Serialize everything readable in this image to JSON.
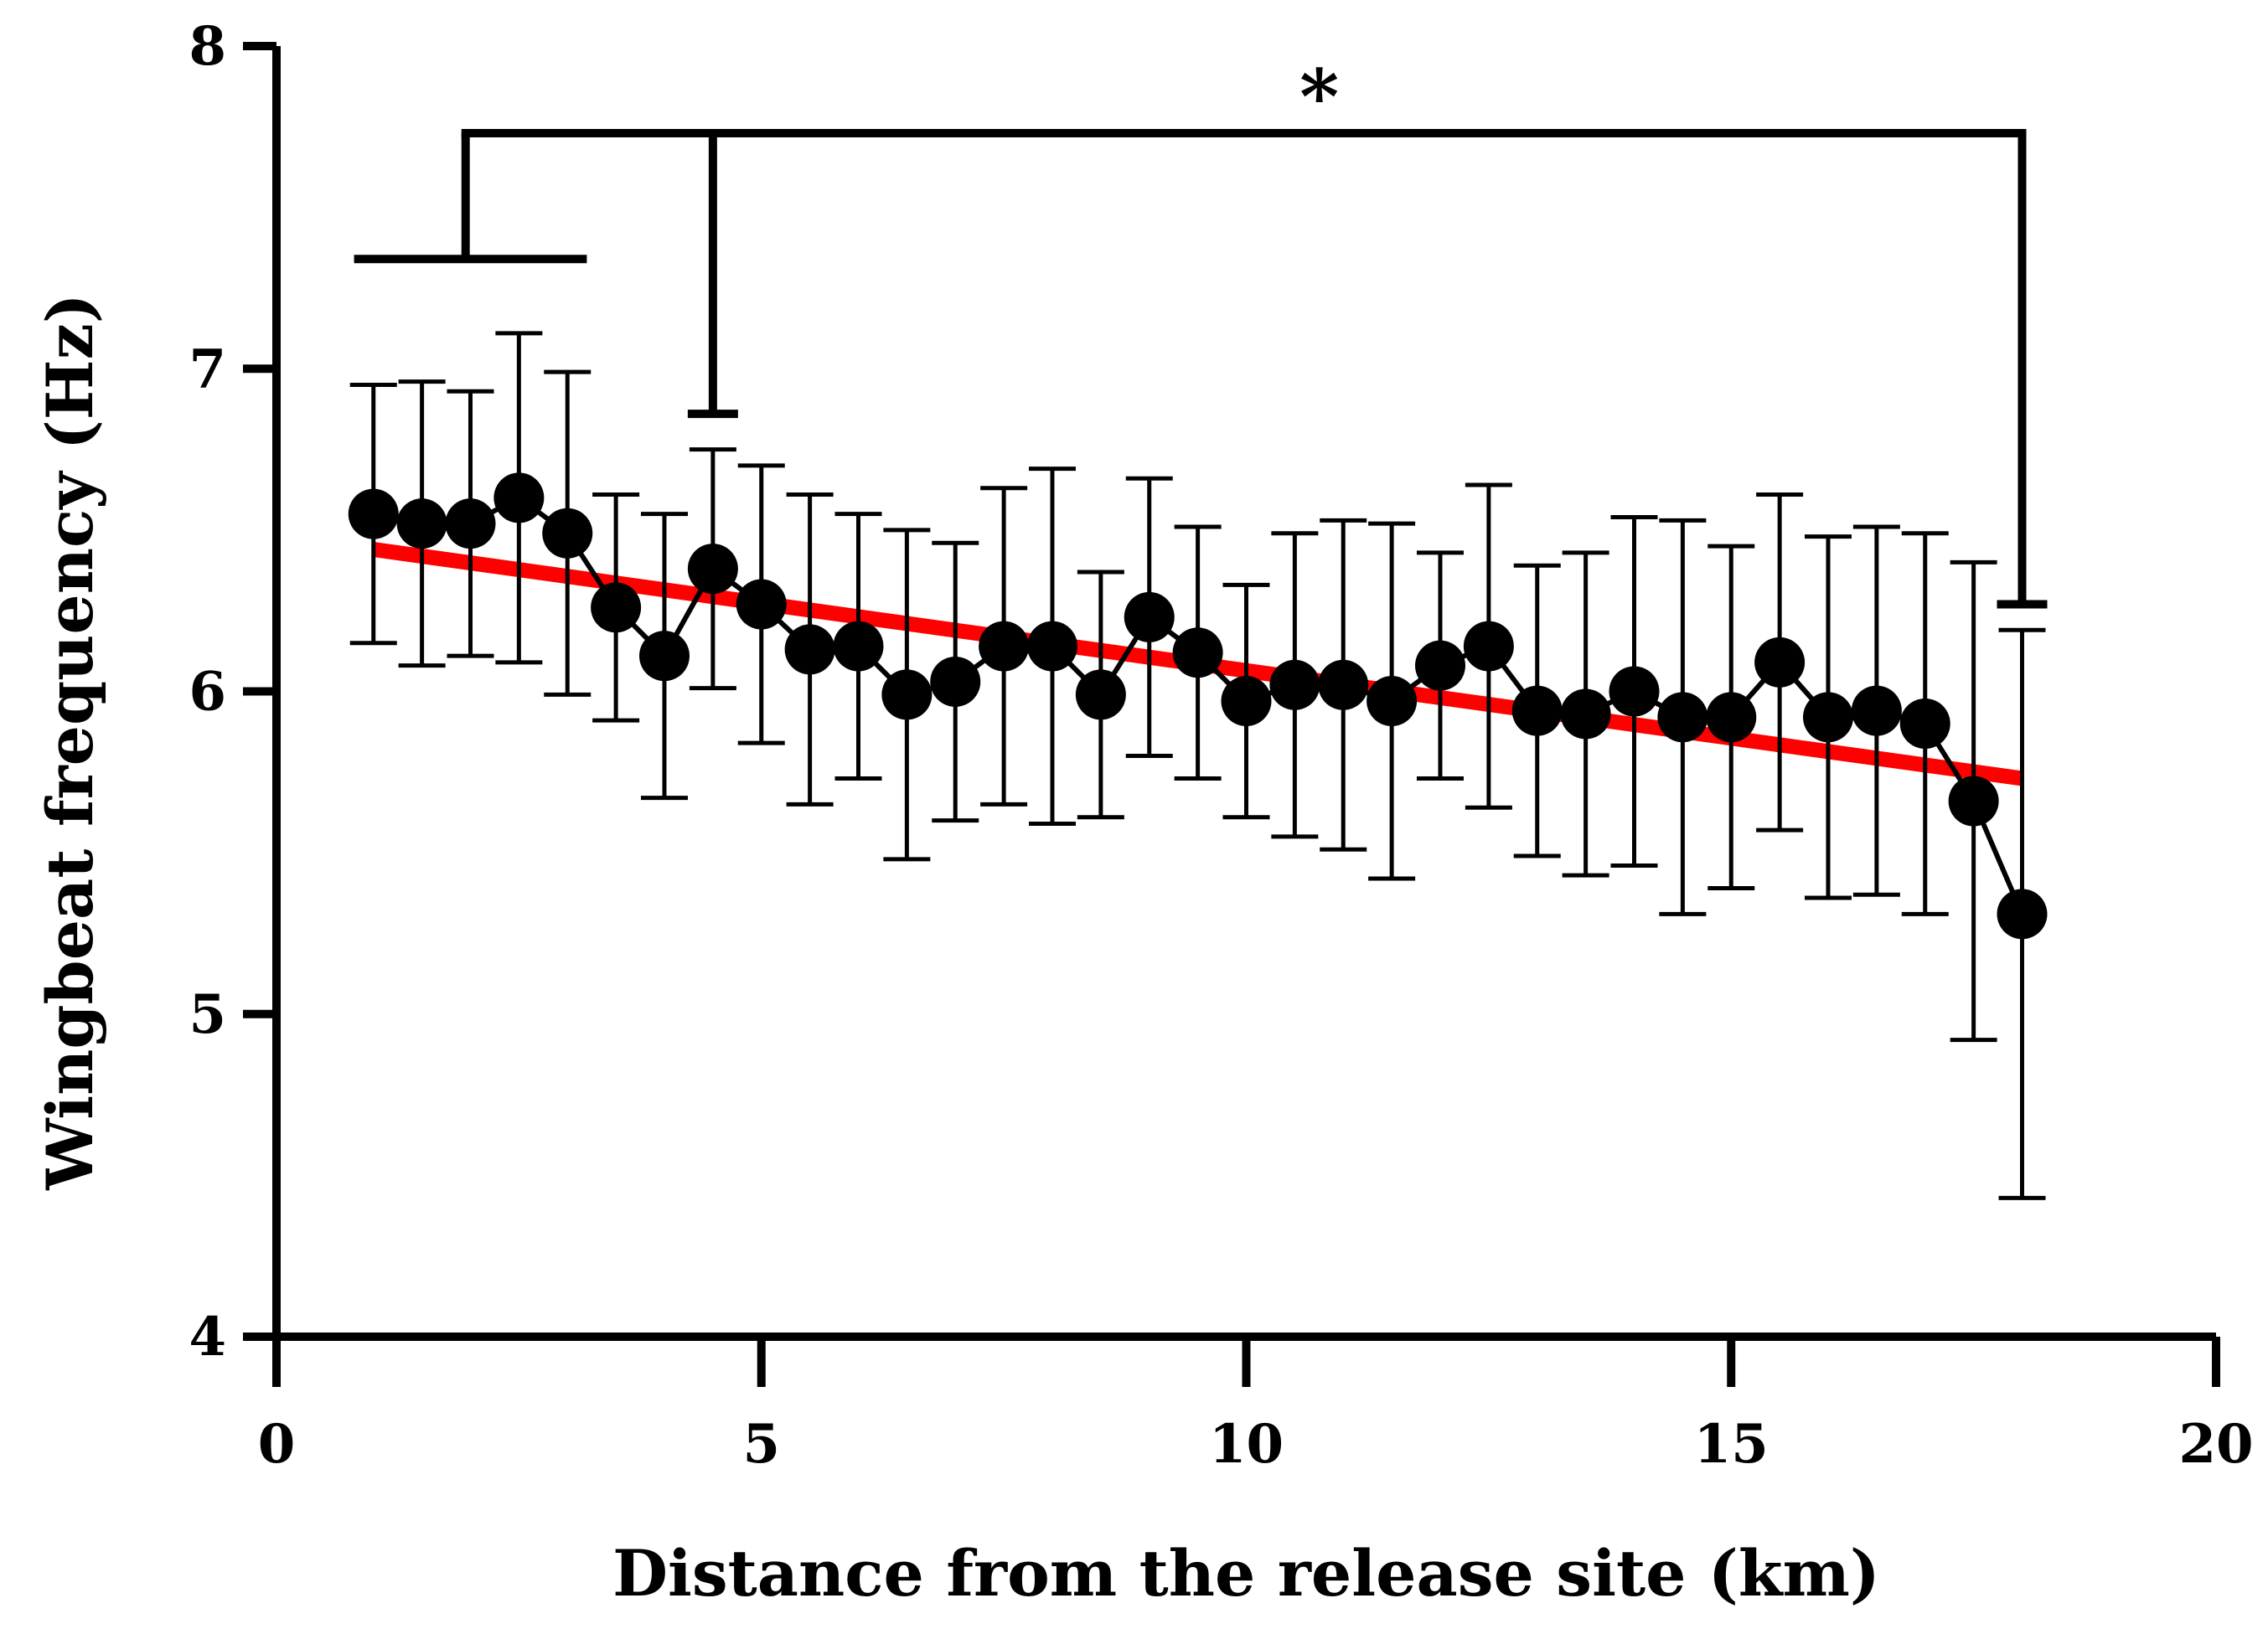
{
  "chart_data": {
    "type": "line",
    "xlabel": "Distance from the release site (km)",
    "ylabel": "Wingbeat frequency (Hz)",
    "xlim": [
      0,
      20
    ],
    "ylim": [
      4,
      8
    ],
    "x_ticks": [
      "0",
      "5",
      "10",
      "15",
      "20"
    ],
    "y_ticks": [
      "4",
      "5",
      "6",
      "7",
      "8"
    ],
    "grid": false,
    "legend": "none",
    "series": [
      {
        "color": "#000000",
        "marker": "circle",
        "error_bars": "symmetric",
        "points": [
          {
            "x": 1.0,
            "y": 6.55,
            "err": 0.4
          },
          {
            "x": 1.5,
            "y": 6.52,
            "err": 0.44
          },
          {
            "x": 2.0,
            "y": 6.52,
            "err": 0.41
          },
          {
            "x": 2.5,
            "y": 6.6,
            "err": 0.51
          },
          {
            "x": 3.0,
            "y": 6.49,
            "err": 0.5
          },
          {
            "x": 3.5,
            "y": 6.26,
            "err": 0.35
          },
          {
            "x": 4.0,
            "y": 6.11,
            "err": 0.44
          },
          {
            "x": 4.5,
            "y": 6.38,
            "err": 0.37
          },
          {
            "x": 5.0,
            "y": 6.27,
            "err": 0.43
          },
          {
            "x": 5.5,
            "y": 6.13,
            "err": 0.48
          },
          {
            "x": 6.0,
            "y": 6.14,
            "err": 0.41
          },
          {
            "x": 6.5,
            "y": 5.99,
            "err": 0.51
          },
          {
            "x": 7.0,
            "y": 6.03,
            "err": 0.43
          },
          {
            "x": 7.5,
            "y": 6.14,
            "err": 0.49
          },
          {
            "x": 8.0,
            "y": 6.14,
            "err": 0.55
          },
          {
            "x": 8.5,
            "y": 5.99,
            "err": 0.38
          },
          {
            "x": 9.0,
            "y": 6.23,
            "err": 0.43
          },
          {
            "x": 9.5,
            "y": 6.12,
            "err": 0.39
          },
          {
            "x": 10.0,
            "y": 5.97,
            "err": 0.36
          },
          {
            "x": 10.5,
            "y": 6.02,
            "err": 0.47
          },
          {
            "x": 11.0,
            "y": 6.02,
            "err": 0.51
          },
          {
            "x": 11.5,
            "y": 5.97,
            "err": 0.55
          },
          {
            "x": 12.0,
            "y": 6.08,
            "err": 0.35
          },
          {
            "x": 12.5,
            "y": 6.14,
            "err": 0.5
          },
          {
            "x": 13.0,
            "y": 5.94,
            "err": 0.45
          },
          {
            "x": 13.5,
            "y": 5.93,
            "err": 0.5
          },
          {
            "x": 14.0,
            "y": 6.0,
            "err": 0.54
          },
          {
            "x": 14.5,
            "y": 5.92,
            "err": 0.61
          },
          {
            "x": 15.0,
            "y": 5.92,
            "err": 0.53
          },
          {
            "x": 15.5,
            "y": 6.09,
            "err": 0.52
          },
          {
            "x": 16.0,
            "y": 5.92,
            "err": 0.56
          },
          {
            "x": 16.5,
            "y": 5.94,
            "err": 0.57
          },
          {
            "x": 17.0,
            "y": 5.9,
            "err": 0.59
          },
          {
            "x": 17.5,
            "y": 5.66,
            "err": 0.74
          },
          {
            "x": 18.0,
            "y": 5.31,
            "err": 0.88
          }
        ]
      }
    ],
    "regression_line": {
      "color": "#ff0000",
      "x": [
        1.0,
        18.0
      ],
      "y": [
        6.44,
        5.73
      ]
    },
    "significance": {
      "label": "*",
      "groups": [
        {
          "x_range": [
            0.8,
            3.2
          ],
          "y": 7.34
        },
        {
          "x": 4.5,
          "y": 6.86
        },
        {
          "x": 18.0,
          "y": 6.27
        }
      ],
      "bracket_y": 7.73,
      "bracket_left_x": 1.95
    }
  }
}
